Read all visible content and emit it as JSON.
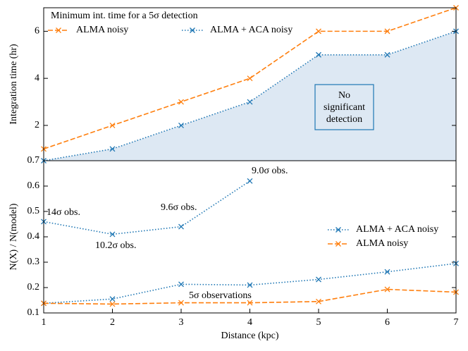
{
  "chart_data": [
    {
      "type": "line",
      "ylabel": "Integration time (hr)",
      "x": [
        1,
        2,
        3,
        4,
        5,
        6,
        7
      ],
      "xlim": [
        1,
        7
      ],
      "ylim": [
        0.5,
        7
      ],
      "yticks": [
        2,
        4,
        6
      ],
      "legend": "upper left",
      "legend_title": "Minimum int. time for a 5σ detection",
      "series": [
        {
          "name": "ALMA noisy",
          "color": "#ff7f0e",
          "linestyle": "dashed",
          "marker": "x",
          "values": [
            1,
            2,
            3,
            4,
            6,
            6,
            7
          ]
        },
        {
          "name": "ALMA + ACA noisy",
          "color": "#1f77b4",
          "linestyle": "dotted",
          "marker": "x",
          "fill": "#dde8f3",
          "values": [
            0.5,
            1,
            2,
            3,
            5,
            5,
            6
          ]
        }
      ],
      "annotations": [
        [
          "No",
          "significant",
          "detection"
        ]
      ]
    },
    {
      "type": "line",
      "xlabel": "Distance (kpc)",
      "ylabel": "N(X) / N(model)",
      "x": [
        1,
        2,
        3,
        4,
        5,
        6,
        7
      ],
      "xlim": [
        1,
        7
      ],
      "xticks": [
        1,
        2,
        3,
        4,
        5,
        6,
        7
      ],
      "ylim": [
        0.1,
        0.7
      ],
      "yticks": [
        0.1,
        0.2,
        0.3,
        0.4,
        0.5,
        0.6,
        0.7
      ],
      "legend": "center right",
      "series": [
        {
          "name": "ALMA + ACA noisy",
          "color": "#1f77b4",
          "linestyle": "dotted",
          "marker": "x",
          "values": [
            0.138,
            0.155,
            0.213,
            0.21,
            0.232,
            0.262,
            0.295
          ]
        },
        {
          "color": "#1f77b4",
          "linestyle": "dotted",
          "marker": "x",
          "x": [
            1,
            2,
            3,
            4
          ],
          "values": [
            0.46,
            0.41,
            0.44,
            0.62
          ]
        },
        {
          "name": "ALMA noisy",
          "color": "#ff7f0e",
          "linestyle": "dashed",
          "marker": "x",
          "values": [
            0.138,
            0.135,
            0.14,
            0.14,
            0.145,
            0.193,
            0.182
          ]
        }
      ],
      "annotations": [
        "14σ obs.",
        "10.2σ obs.",
        "9.6σ obs.",
        "9.0σ obs.",
        "5σ observations"
      ]
    }
  ]
}
